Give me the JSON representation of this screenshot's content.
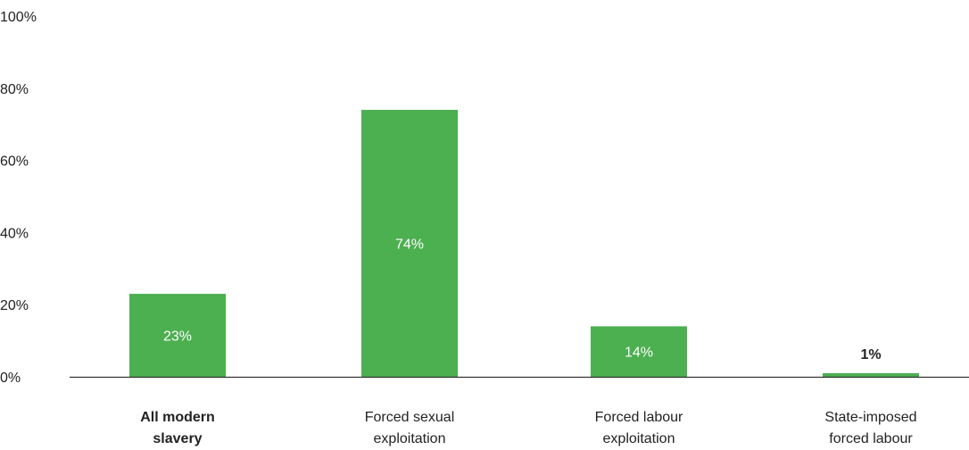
{
  "chart_data": {
    "type": "bar",
    "categories": [
      [
        "All modern",
        "slavery"
      ],
      [
        "Forced sexual",
        "exploitation"
      ],
      [
        "Forced labour",
        "exploitation"
      ],
      [
        "State-imposed",
        "forced labour"
      ]
    ],
    "category_bold": [
      true,
      false,
      false,
      false
    ],
    "values": [
      23,
      74,
      14,
      1
    ],
    "data_labels": [
      "23%",
      "74%",
      "14%",
      "1%"
    ],
    "title": "",
    "xlabel": "",
    "ylabel": "",
    "ylim": [
      0,
      100
    ],
    "yticks": [
      {
        "value": 0,
        "label": "0%"
      },
      {
        "value": 20,
        "label": "20%"
      },
      {
        "value": 40,
        "label": "40%"
      },
      {
        "value": 60,
        "label": "60%"
      },
      {
        "value": 80,
        "label": "80%"
      },
      {
        "value": 100,
        "label": "100%"
      }
    ],
    "grid": false,
    "colors": {
      "bar": "#4caf50",
      "axis": "#333333",
      "label_inside": "#ffffff",
      "label_outside": "#222222"
    }
  }
}
